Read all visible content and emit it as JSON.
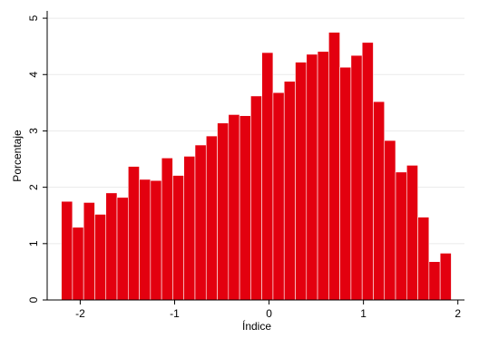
{
  "chart_data": {
    "type": "histogram",
    "x_label": "Índice",
    "y_label": "Porcentaje",
    "bins": [
      -2.2,
      -2.082,
      -1.964,
      -1.846,
      -1.728,
      -1.61,
      -1.492,
      -1.374,
      -1.256,
      -1.138,
      -1.02,
      -0.902,
      -0.784,
      -0.666,
      -0.548,
      -0.43,
      -0.312,
      -0.194,
      -0.076,
      0.042,
      0.16,
      0.278,
      0.396,
      0.514,
      0.632,
      0.75,
      0.868,
      0.986,
      1.104,
      1.222,
      1.34,
      1.458,
      1.576,
      1.694,
      1.812,
      1.93
    ],
    "values": [
      1.75,
      1.29,
      1.73,
      1.52,
      1.9,
      1.82,
      2.37,
      2.14,
      2.12,
      2.52,
      2.21,
      2.55,
      2.75,
      2.91,
      3.14,
      3.29,
      3.27,
      3.62,
      4.39,
      3.68,
      3.88,
      4.22,
      4.36,
      4.41,
      4.75,
      4.13,
      4.34,
      4.57,
      3.52,
      2.83,
      2.27,
      2.39,
      1.47,
      0.68,
      0.83
    ],
    "color": "#e3000f",
    "xlim": [
      -2.35,
      2.07
    ],
    "xticks": [
      -2,
      -1,
      0,
      1,
      2
    ],
    "ylim": [
      0,
      5.13
    ],
    "yticks": [
      0,
      1,
      2,
      3,
      4,
      5
    ],
    "grid": true
  }
}
